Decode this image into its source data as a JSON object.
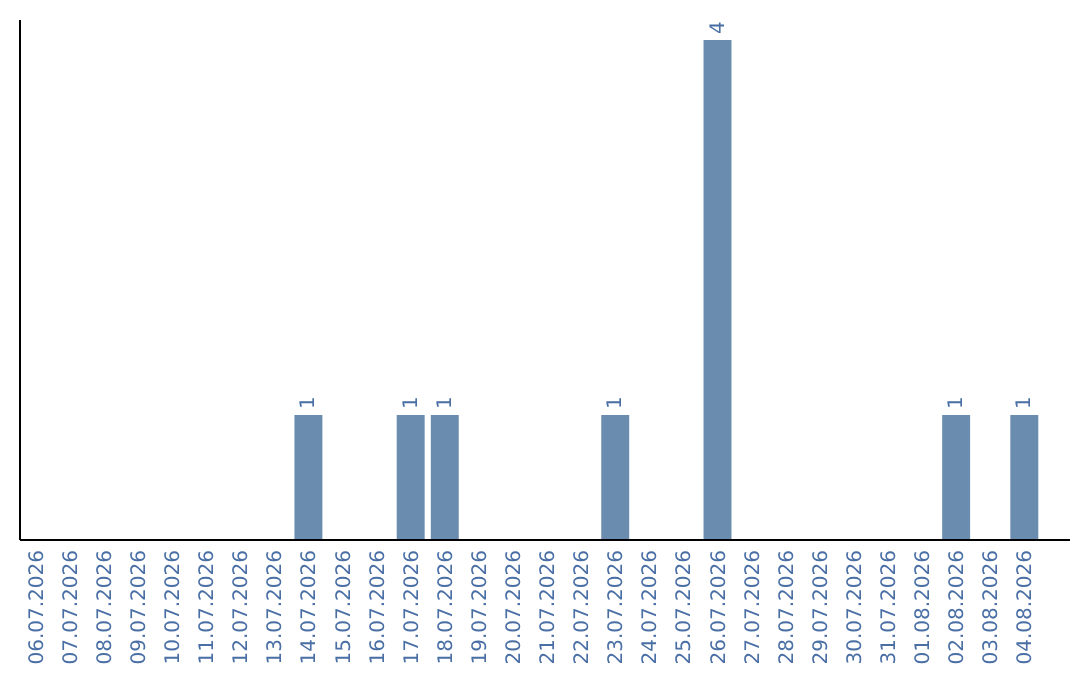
{
  "chart_data": {
    "type": "bar",
    "categories": [
      "06.07.2026",
      "07.07.2026",
      "08.07.2026",
      "09.07.2026",
      "10.07.2026",
      "11.07.2026",
      "12.07.2026",
      "13.07.2026",
      "14.07.2026",
      "15.07.2026",
      "16.07.2026",
      "17.07.2026",
      "18.07.2026",
      "19.07.2026",
      "20.07.2026",
      "21.07.2026",
      "22.07.2026",
      "23.07.2026",
      "24.07.2026",
      "25.07.2026",
      "26.07.2026",
      "27.07.2026",
      "28.07.2026",
      "29.07.2026",
      "30.07.2026",
      "31.07.2026",
      "01.08.2026",
      "02.08.2026",
      "03.08.2026",
      "04.08.2026"
    ],
    "values": [
      0,
      0,
      0,
      0,
      0,
      0,
      0,
      0,
      1,
      0,
      0,
      1,
      1,
      0,
      0,
      0,
      0,
      1,
      0,
      0,
      4,
      0,
      0,
      0,
      0,
      0,
      0,
      1,
      0,
      1
    ],
    "value_labels": [
      null,
      null,
      null,
      null,
      null,
      null,
      null,
      null,
      "1",
      null,
      null,
      "1",
      "1",
      null,
      null,
      null,
      null,
      "1",
      null,
      null,
      "4",
      null,
      null,
      null,
      null,
      null,
      null,
      "1",
      null,
      "1"
    ],
    "color": "#6a8caf",
    "ylim": [
      0,
      4.16
    ],
    "tick_labels": "x"
  }
}
